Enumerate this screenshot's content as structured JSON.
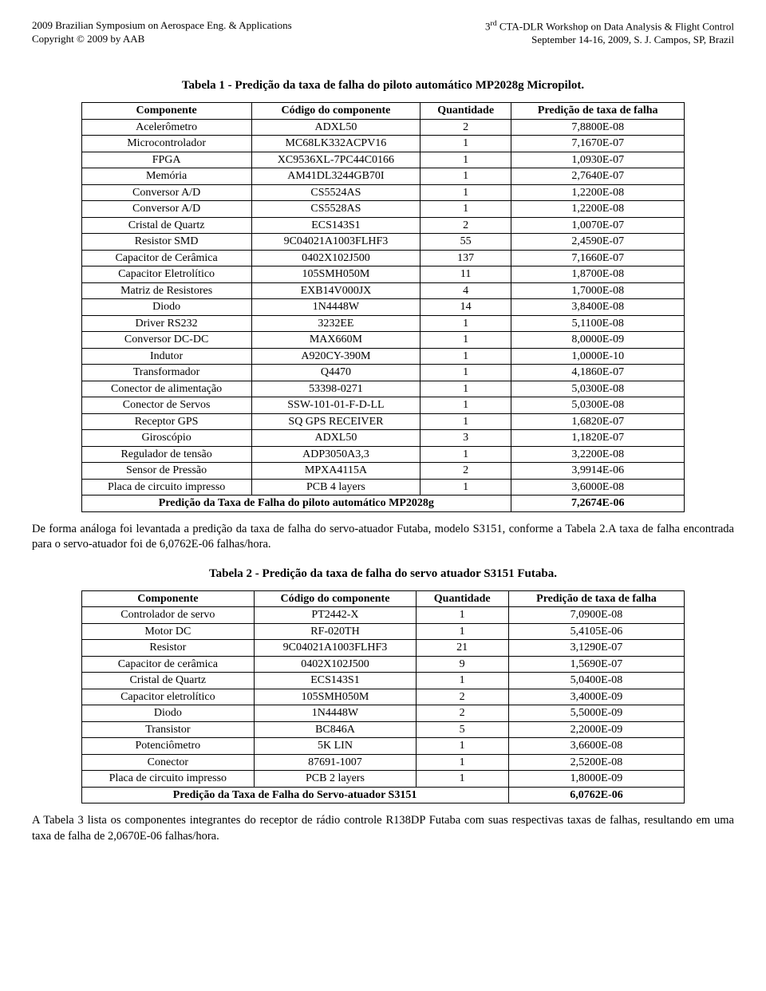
{
  "header": {
    "left_line1": "2009 Brazilian Symposium on Aerospace Eng. & Applications",
    "left_line2": "Copyright © 2009 by AAB",
    "right_line1_prefix": "3",
    "right_line1_sup": "rd",
    "right_line1_rest": " CTA-DLR Workshop on Data Analysis & Flight Control",
    "right_line2": "September 14-16, 2009, S. J. Campos, SP, Brazil"
  },
  "table1": {
    "title": "Tabela 1 - Predição da taxa de falha do piloto automático MP2028g Micropilot.",
    "columns": [
      "Componente",
      "Código do componente",
      "Quantidade",
      "Predição de taxa de falha"
    ],
    "rows": [
      [
        "Acelerômetro",
        "ADXL50",
        "2",
        "7,8800E-08"
      ],
      [
        "Microcontrolador",
        "MC68LK332ACPV16",
        "1",
        "7,1670E-07"
      ],
      [
        "FPGA",
        "XC9536XL-7PC44C0166",
        "1",
        "1,0930E-07"
      ],
      [
        "Memória",
        "AM41DL3244GB70I",
        "1",
        "2,7640E-07"
      ],
      [
        "Conversor A/D",
        "CS5524AS",
        "1",
        "1,2200E-08"
      ],
      [
        "Conversor A/D",
        "CS5528AS",
        "1",
        "1,2200E-08"
      ],
      [
        "Cristal de Quartz",
        "ECS143S1",
        "2",
        "1,0070E-07"
      ],
      [
        "Resistor SMD",
        "9C04021A1003FLHF3",
        "55",
        "2,4590E-07"
      ],
      [
        "Capacitor de Cerâmica",
        "0402X102J500",
        "137",
        "7,1660E-07"
      ],
      [
        "Capacitor Eletrolítico",
        "105SMH050M",
        "11",
        "1,8700E-08"
      ],
      [
        "Matriz de Resistores",
        "EXB14V000JX",
        "4",
        "1,7000E-08"
      ],
      [
        "Diodo",
        "1N4448W",
        "14",
        "3,8400E-08"
      ],
      [
        "Driver RS232",
        "3232EE",
        "1",
        "5,1100E-08"
      ],
      [
        "Conversor DC-DC",
        "MAX660M",
        "1",
        "8,0000E-09"
      ],
      [
        "Indutor",
        "A920CY-390M",
        "1",
        "1,0000E-10"
      ],
      [
        "Transformador",
        "Q4470",
        "1",
        "4,1860E-07"
      ],
      [
        "Conector de alimentação",
        "53398-0271",
        "1",
        "5,0300E-08"
      ],
      [
        "Conector de Servos",
        "SSW-101-01-F-D-LL",
        "1",
        "5,0300E-08"
      ],
      [
        "Receptor GPS",
        "SQ GPS RECEIVER",
        "1",
        "1,6820E-07"
      ],
      [
        "Giroscópio",
        "ADXL50",
        "3",
        "1,1820E-07"
      ],
      [
        "Regulador de tensão",
        "ADP3050A3,3",
        "1",
        "3,2200E-08"
      ],
      [
        "Sensor de Pressão",
        "MPXA4115A",
        "2",
        "3,9914E-06"
      ],
      [
        "Placa de circuito impresso",
        "PCB 4 layers",
        "1",
        "3,6000E-08"
      ]
    ],
    "summary_label": "Predição da Taxa de Falha do piloto automático MP2028g",
    "summary_value": "7,2674E-06"
  },
  "para1": "De forma análoga foi levantada a predição da taxa de falha do servo-atuador Futaba, modelo S3151, conforme a Tabela 2.A taxa de falha encontrada para o servo-atuador foi de 6,0762E-06 falhas/hora.",
  "table2": {
    "title": "Tabela 2 - Predição da taxa de falha do servo atuador S3151 Futaba.",
    "columns": [
      "Componente",
      "Código do componente",
      "Quantidade",
      "Predição de taxa de falha"
    ],
    "rows": [
      [
        "Controlador de servo",
        "PT2442-X",
        "1",
        "7,0900E-08"
      ],
      [
        "Motor DC",
        "RF-020TH",
        "1",
        "5,4105E-06"
      ],
      [
        "Resistor",
        "9C04021A1003FLHF3",
        "21",
        "3,1290E-07"
      ],
      [
        "Capacitor de cerâmica",
        "0402X102J500",
        "9",
        "1,5690E-07"
      ],
      [
        "Cristal de Quartz",
        "ECS143S1",
        "1",
        "5,0400E-08"
      ],
      [
        "Capacitor eletrolítico",
        "105SMH050M",
        "2",
        "3,4000E-09"
      ],
      [
        "Diodo",
        "1N4448W",
        "2",
        "5,5000E-09"
      ],
      [
        "Transistor",
        "BC846A",
        "5",
        "2,2000E-09"
      ],
      [
        "Potenciômetro",
        "5K LIN",
        "1",
        "3,6600E-08"
      ],
      [
        "Conector",
        "87691-1007",
        "1",
        "2,5200E-08"
      ],
      [
        "Placa de circuito impresso",
        "PCB 2 layers",
        "1",
        "1,8000E-09"
      ]
    ],
    "summary_label": "Predição da Taxa de Falha do Servo-atuador S3151",
    "summary_value": "6,0762E-06"
  },
  "para2": "A Tabela 3 lista os componentes integrantes do receptor de rádio controle R138DP Futaba com suas respectivas taxas de falhas, resultando em uma taxa de falha de 2,0670E-06 falhas/hora."
}
